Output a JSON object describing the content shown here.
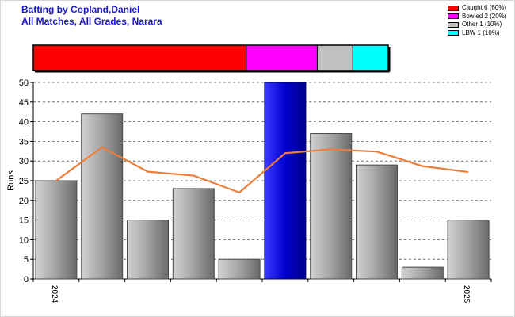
{
  "title": {
    "line1": "Batting by Copland,Daniel",
    "line2": "All Matches, All Grades, Narara"
  },
  "legend": [
    {
      "label": "Caught 6 (60%)",
      "color": "#ff0000"
    },
    {
      "label": "Bowled 2 (20%)",
      "color": "#ff00ff"
    },
    {
      "label": "Other 1 (10%)",
      "color": "#c0c0c0"
    },
    {
      "label": "LBW 1 (10%)",
      "color": "#00ffff"
    }
  ],
  "chart_data": [
    {
      "type": "bar",
      "title": "Batting by Copland,Daniel",
      "subtitle": "All Matches, All Grades, Narara",
      "ylabel": "Runs",
      "ylim": [
        0,
        50
      ],
      "yticks": [
        0,
        5,
        10,
        15,
        20,
        25,
        30,
        35,
        40,
        45,
        50
      ],
      "x_tick_labels": [
        {
          "label": "2024",
          "index": 0
        },
        {
          "label": "2025",
          "index": 9
        }
      ],
      "grid": true,
      "highlight_color": "#0000cc",
      "bar_color": "#a0a0a0",
      "series": [
        {
          "type": "bar",
          "values": [
            25,
            42,
            15,
            23,
            5,
            50,
            37,
            29,
            3,
            15
          ],
          "highlight_index": 5
        },
        {
          "type": "line",
          "color": "#ed7d3a",
          "values": [
            25,
            33.5,
            27.3,
            26.3,
            22,
            32,
            33,
            32.4,
            28.7,
            27.2
          ]
        }
      ]
    },
    {
      "type": "bar",
      "orientation": "horizontal-stacked",
      "legend_position": "top-right",
      "series": [
        {
          "name": "Caught",
          "value": 6,
          "percent": 60,
          "color": "#ff0000"
        },
        {
          "name": "Bowled",
          "value": 2,
          "percent": 20,
          "color": "#ff00ff"
        },
        {
          "name": "Other",
          "value": 1,
          "percent": 10,
          "color": "#c0c0c0"
        },
        {
          "name": "LBW",
          "value": 1,
          "percent": 10,
          "color": "#00ffff"
        }
      ]
    }
  ]
}
